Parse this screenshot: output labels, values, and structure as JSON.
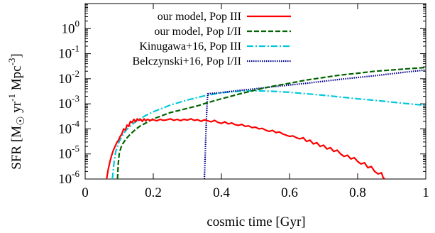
{
  "chart_data": {
    "type": "line",
    "xlabel": "cosmic time [Gyr]",
    "ylabel": {
      "main": "SFR [M",
      "sub": "☉",
      "rest": " yr",
      "sup1": "-1",
      "mid": " Mpc",
      "sup2": "-3",
      "close": "]"
    },
    "xlim": [
      0,
      1
    ],
    "ylim_log10": [
      -6,
      1
    ],
    "y_scale": "log",
    "x_ticks": [
      {
        "value": 0,
        "label": "0"
      },
      {
        "value": 0.2,
        "label": "0.2"
      },
      {
        "value": 0.4,
        "label": "0.4"
      },
      {
        "value": 0.6,
        "label": "0.6"
      },
      {
        "value": 0.8,
        "label": "0.8"
      },
      {
        "value": 1,
        "label": "1"
      }
    ],
    "y_ticks": [
      {
        "exp": 0,
        "base": "10",
        "sup": "0"
      },
      {
        "exp": -1,
        "base": "10",
        "sup": "-1"
      },
      {
        "exp": -2,
        "base": "10",
        "sup": "-2"
      },
      {
        "exp": -3,
        "base": "10",
        "sup": "-3"
      },
      {
        "exp": -4,
        "base": "10",
        "sup": "-4"
      },
      {
        "exp": -5,
        "base": "10",
        "sup": "-5"
      },
      {
        "exp": -6,
        "base": "10",
        "sup": "-6"
      }
    ],
    "legend_position": "top-left",
    "grid": false,
    "series": [
      {
        "name": "our model, Pop III",
        "color": "#ff0000",
        "dash": "solid",
        "x": [
          0.063,
          0.068,
          0.073,
          0.078,
          0.083,
          0.088,
          0.093,
          0.098,
          0.103,
          0.108,
          0.113,
          0.118,
          0.123,
          0.128,
          0.133,
          0.138,
          0.143,
          0.148,
          0.153,
          0.158,
          0.163,
          0.168,
          0.173,
          0.178,
          0.183,
          0.19,
          0.2,
          0.21,
          0.22,
          0.23,
          0.24,
          0.25,
          0.26,
          0.27,
          0.28,
          0.29,
          0.3,
          0.31,
          0.32,
          0.33,
          0.34,
          0.35,
          0.36,
          0.37,
          0.38,
          0.39,
          0.4,
          0.41,
          0.42,
          0.43,
          0.44,
          0.45,
          0.46,
          0.47,
          0.48,
          0.49,
          0.5,
          0.51,
          0.52,
          0.53,
          0.54,
          0.55,
          0.56,
          0.57,
          0.58,
          0.59,
          0.6,
          0.61,
          0.62,
          0.63,
          0.64,
          0.65,
          0.66,
          0.67,
          0.68,
          0.69,
          0.7,
          0.71,
          0.72,
          0.73,
          0.74,
          0.75,
          0.76,
          0.77,
          0.78,
          0.79,
          0.8,
          0.81,
          0.82,
          0.83,
          0.84,
          0.85,
          0.86,
          0.87,
          0.875,
          0.88
        ],
        "y_log10": [
          -6.0,
          -5.6,
          -5.3,
          -5.05,
          -4.85,
          -4.7,
          -4.55,
          -4.45,
          -4.3,
          -4.2,
          -4.0,
          -4.05,
          -3.85,
          -3.9,
          -3.7,
          -3.75,
          -3.62,
          -3.72,
          -3.6,
          -3.66,
          -3.62,
          -3.7,
          -3.6,
          -3.68,
          -3.62,
          -3.66,
          -3.63,
          -3.68,
          -3.62,
          -3.66,
          -3.64,
          -3.6,
          -3.66,
          -3.62,
          -3.67,
          -3.62,
          -3.65,
          -3.6,
          -3.66,
          -3.63,
          -3.7,
          -3.64,
          -3.68,
          -3.72,
          -3.66,
          -3.74,
          -3.78,
          -3.72,
          -3.8,
          -3.76,
          -3.83,
          -3.86,
          -3.82,
          -3.9,
          -3.88,
          -3.95,
          -3.93,
          -4.0,
          -3.98,
          -4.05,
          -4.1,
          -4.06,
          -4.15,
          -4.12,
          -4.2,
          -4.25,
          -4.3,
          -4.28,
          -4.35,
          -4.4,
          -4.35,
          -4.5,
          -4.45,
          -4.6,
          -4.55,
          -4.7,
          -4.65,
          -4.8,
          -4.75,
          -4.9,
          -4.85,
          -5.0,
          -5.1,
          -5.05,
          -5.2,
          -5.15,
          -5.3,
          -5.4,
          -5.35,
          -5.55,
          -5.5,
          -5.7,
          -5.8,
          -5.75,
          -5.95,
          -6.0
        ]
      },
      {
        "name": "our model, Pop I/II",
        "color": "#006400",
        "dash": "dashed",
        "x": [
          0.095,
          0.097,
          0.1,
          0.105,
          0.11,
          0.12,
          0.13,
          0.14,
          0.15,
          0.16,
          0.18,
          0.2,
          0.22,
          0.25,
          0.28,
          0.3,
          0.33,
          0.36,
          0.4,
          0.45,
          0.5,
          0.55,
          0.6,
          0.65,
          0.7,
          0.75,
          0.8,
          0.85,
          0.9,
          0.95,
          1.0
        ],
        "y_log10": [
          -6.0,
          -5.4,
          -5.0,
          -4.75,
          -4.6,
          -4.4,
          -4.25,
          -4.12,
          -4.0,
          -3.9,
          -3.75,
          -3.6,
          -3.5,
          -3.35,
          -3.25,
          -3.18,
          -3.08,
          -2.95,
          -2.8,
          -2.62,
          -2.45,
          -2.3,
          -2.18,
          -2.05,
          -1.95,
          -1.85,
          -1.78,
          -1.7,
          -1.65,
          -1.6,
          -1.55
        ]
      },
      {
        "name": "Kinugawa+16, Pop III",
        "color": "#00c8dc",
        "dash": "dashdot",
        "x": [
          0.08,
          0.085,
          0.09,
          0.1,
          0.11,
          0.12,
          0.14,
          0.16,
          0.18,
          0.2,
          0.25,
          0.3,
          0.35,
          0.4,
          0.45,
          0.5,
          0.55,
          0.6,
          0.65,
          0.7,
          0.75,
          0.8,
          0.85,
          0.9,
          0.95,
          1.0
        ],
        "y_log10": [
          -6.0,
          -5.3,
          -4.9,
          -4.5,
          -4.25,
          -4.05,
          -3.8,
          -3.6,
          -3.45,
          -3.32,
          -3.05,
          -2.85,
          -2.68,
          -2.56,
          -2.5,
          -2.48,
          -2.5,
          -2.54,
          -2.6,
          -2.66,
          -2.73,
          -2.8,
          -2.86,
          -2.93,
          -3.0,
          -3.06
        ]
      },
      {
        "name": "Belczynski+16, Pop I/II",
        "color": "#00008b",
        "dash": "dotted",
        "x": [
          0.35,
          0.352,
          0.354,
          0.356,
          0.358,
          0.36,
          0.4,
          0.45,
          0.5,
          0.55,
          0.6,
          0.65,
          0.7,
          0.75,
          0.8,
          0.85,
          0.9,
          0.95,
          1.0
        ],
        "y_log10": [
          -6.0,
          -5.2,
          -4.4,
          -3.6,
          -3.0,
          -2.6,
          -2.55,
          -2.47,
          -2.4,
          -2.32,
          -2.25,
          -2.18,
          -2.1,
          -2.02,
          -1.95,
          -1.88,
          -1.8,
          -1.72,
          -1.65
        ]
      }
    ]
  }
}
